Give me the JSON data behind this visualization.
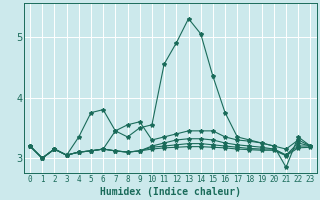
{
  "title": "",
  "xlabel": "Humidex (Indice chaleur)",
  "x_ticks": [
    0,
    1,
    2,
    3,
    4,
    5,
    6,
    7,
    8,
    9,
    10,
    11,
    12,
    13,
    14,
    15,
    16,
    17,
    18,
    19,
    20,
    21,
    22,
    23
  ],
  "ylim": [
    2.75,
    5.55
  ],
  "xlim": [
    -0.5,
    23.5
  ],
  "yticks": [
    3,
    4,
    5
  ],
  "background_color": "#cce9ec",
  "grid_color": "#ffffff",
  "line_color": "#1a6b5a",
  "lines": [
    [
      3.2,
      3.0,
      3.15,
      3.05,
      3.35,
      3.75,
      3.8,
      3.45,
      3.35,
      3.5,
      3.55,
      4.55,
      4.9,
      5.3,
      5.05,
      4.35,
      3.75,
      3.35,
      3.3,
      3.25,
      3.2,
      3.15,
      3.3,
      3.2
    ],
    [
      3.2,
      3.0,
      3.15,
      3.05,
      3.1,
      3.12,
      3.15,
      3.45,
      3.55,
      3.6,
      3.3,
      3.35,
      3.4,
      3.45,
      3.45,
      3.45,
      3.35,
      3.3,
      3.28,
      3.25,
      3.2,
      2.85,
      3.35,
      3.2
    ],
    [
      3.2,
      3.0,
      3.15,
      3.05,
      3.1,
      3.12,
      3.15,
      3.12,
      3.1,
      3.12,
      3.2,
      3.25,
      3.3,
      3.32,
      3.32,
      3.3,
      3.25,
      3.22,
      3.2,
      3.18,
      3.15,
      3.05,
      3.25,
      3.2
    ],
    [
      3.2,
      3.0,
      3.15,
      3.05,
      3.1,
      3.12,
      3.15,
      3.12,
      3.1,
      3.12,
      3.18,
      3.2,
      3.22,
      3.24,
      3.24,
      3.22,
      3.2,
      3.18,
      3.16,
      3.15,
      3.15,
      3.05,
      3.2,
      3.2
    ],
    [
      3.2,
      3.0,
      3.15,
      3.05,
      3.1,
      3.12,
      3.15,
      3.12,
      3.1,
      3.12,
      3.15,
      3.17,
      3.18,
      3.19,
      3.19,
      3.18,
      3.17,
      3.15,
      3.14,
      3.13,
      3.13,
      3.04,
      3.17,
      3.18
    ]
  ],
  "marker": "*",
  "markersize": 3,
  "linewidth": 0.8,
  "tick_fontsize": 5.5,
  "xlabel_fontsize": 7
}
